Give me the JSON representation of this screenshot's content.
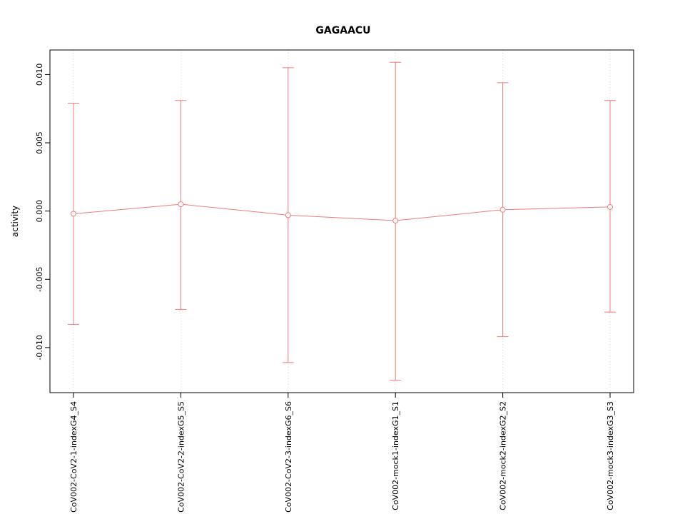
{
  "chart_data": {
    "type": "line",
    "title": "GAGAACU",
    "xlabel": "",
    "ylabel": "activity",
    "categories": [
      "CoV002-CoV2-1-indexG4_S4",
      "CoV002-CoV2-2-indexG5_S5",
      "CoV002-CoV2-3-indexG6_S6",
      "CoV002-mock1-indexG1_S1",
      "CoV002-mock2-indexG2_S2",
      "CoV002-mock3-indexG3_S3"
    ],
    "series": [
      {
        "name": "activity",
        "means": [
          -0.0002,
          0.0005,
          -0.0003,
          -0.0007,
          0.0001,
          0.0003
        ],
        "upper": [
          0.0079,
          0.0081,
          0.0105,
          0.0109,
          0.0094,
          0.0081
        ],
        "lower": [
          -0.0083,
          -0.0072,
          -0.0111,
          -0.0124,
          -0.0092,
          -0.0074
        ],
        "color": "#f07a7a"
      }
    ],
    "yticks": [
      -0.01,
      -0.005,
      0.0,
      0.005,
      0.01
    ],
    "ytick_labels": [
      "-0.010",
      "-0.005",
      "0.000",
      "0.005",
      "0.010"
    ],
    "ylim": [
      -0.0133,
      0.0118
    ],
    "marker": "open-circle",
    "error_bars": true,
    "grid": "vertical-dotted",
    "grid_color": "#d8d8d8",
    "frame_color": "#000000",
    "legend_position": "none"
  }
}
